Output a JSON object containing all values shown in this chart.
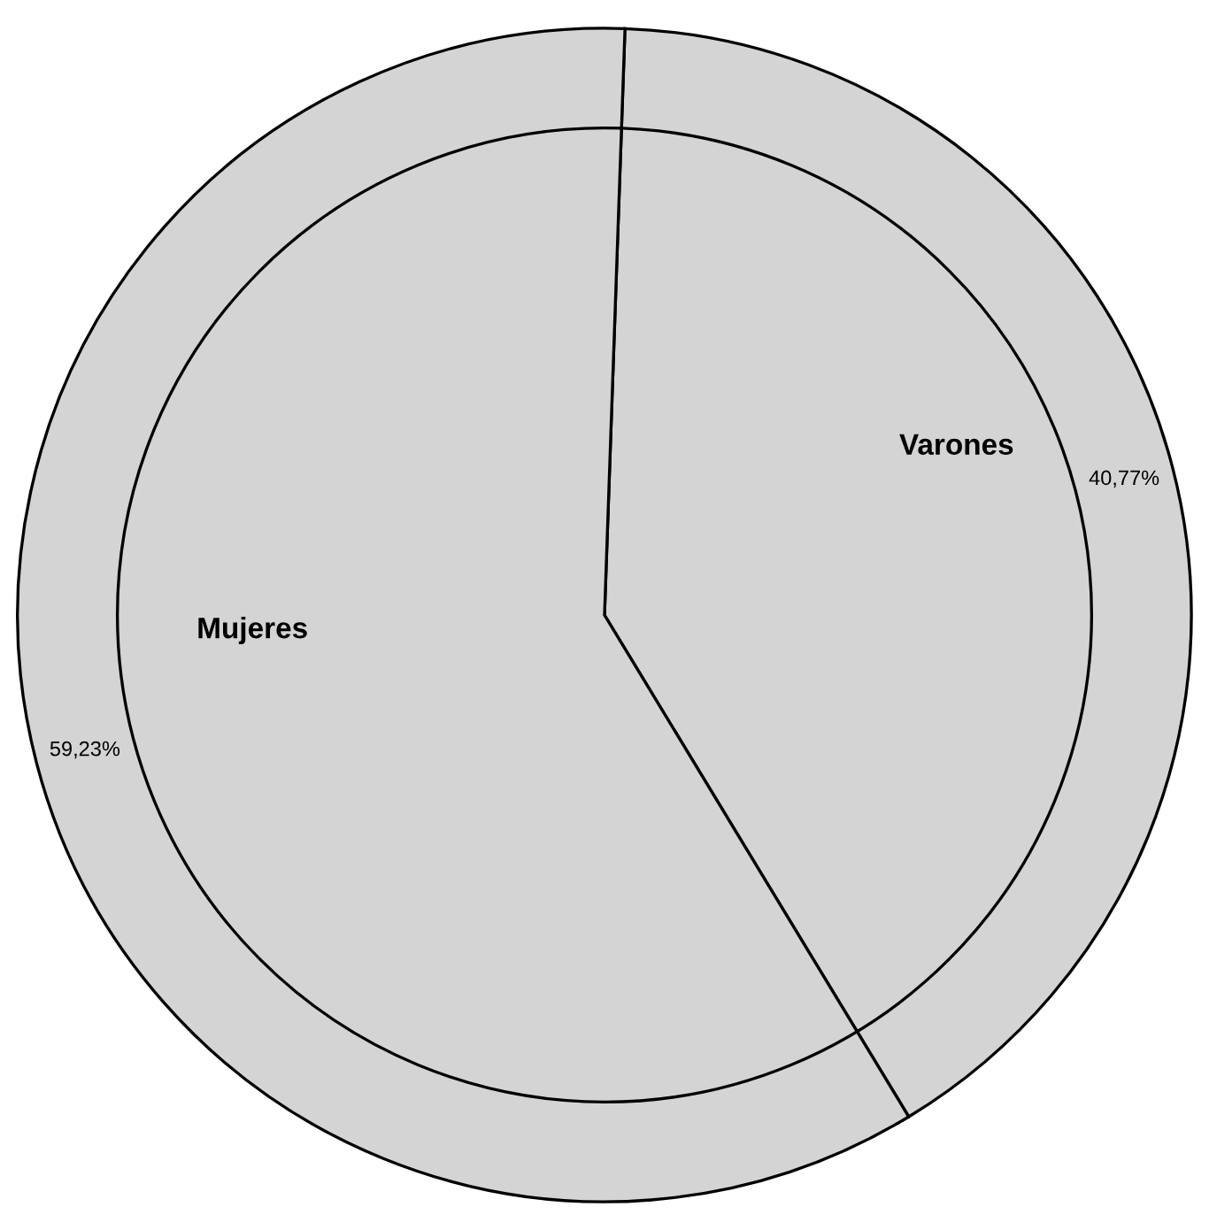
{
  "chart_data": {
    "type": "pie",
    "categories": [
      "Varones",
      "Mujeres"
    ],
    "values": [
      40.77,
      59.23
    ],
    "value_labels": [
      "40,77%",
      "59,23%"
    ],
    "colors": [
      "#d4d4d4",
      "#d4d4d4"
    ]
  }
}
